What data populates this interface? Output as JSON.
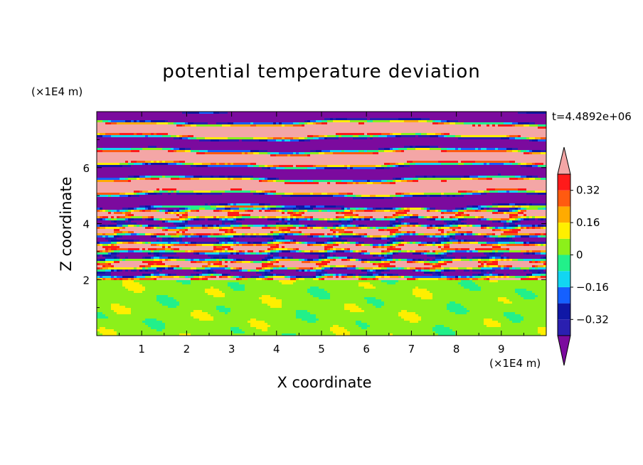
{
  "chart_data": {
    "type": "heatmap",
    "title": "potential temperature deviation",
    "xlabel": "X coordinate",
    "ylabel": "Z coordinate",
    "x_unit_label": "(×1E4 m)",
    "z_unit_label": "(×1E4 m)",
    "time_label": "t=4.4892e+06",
    "xlim": [
      0,
      10
    ],
    "ylim": [
      0,
      8
    ],
    "x_ticks": [
      "1",
      "2",
      "3",
      "4",
      "5",
      "6",
      "7",
      "8",
      "9"
    ],
    "y_ticks": [
      "2",
      "4",
      "6"
    ],
    "colorbar": {
      "tick_labels": [
        "0.32",
        "0.16",
        "0",
        "−0.16",
        "−0.32"
      ],
      "tick_values": [
        0.32,
        0.16,
        0,
        -0.16,
        -0.32
      ],
      "levels": [
        -0.4,
        -0.32,
        -0.24,
        -0.16,
        -0.08,
        0,
        0.08,
        0.16,
        0.24,
        0.32,
        0.4
      ],
      "colors": [
        "#7b0a9e",
        "#2a1fb0",
        "#0f17a6",
        "#1560ff",
        "#12d6f2",
        "#22f08a",
        "#8cf01a",
        "#ffef00",
        "#ffab00",
        "#ff5a10",
        "#ff1a1a",
        "#f4a6a6"
      ],
      "extend": "both"
    },
    "bands": [
      {
        "z": [
          0.0,
          1.95
        ],
        "pattern": "green-cells",
        "values": "between 0 and 0.08 with patches near -0.08"
      },
      {
        "z": [
          1.95,
          2.3
        ],
        "pattern": "mixed",
        "values": "-0.4 to 0.4"
      },
      {
        "z": [
          2.3,
          4.6
        ],
        "pattern": "mixed-turbulent",
        "values": "-0.4 to 0.4"
      },
      {
        "z": [
          4.6,
          8.0
        ],
        "pattern": "alternating-layers",
        "values": "below -0.4 and above 0.4"
      }
    ]
  }
}
